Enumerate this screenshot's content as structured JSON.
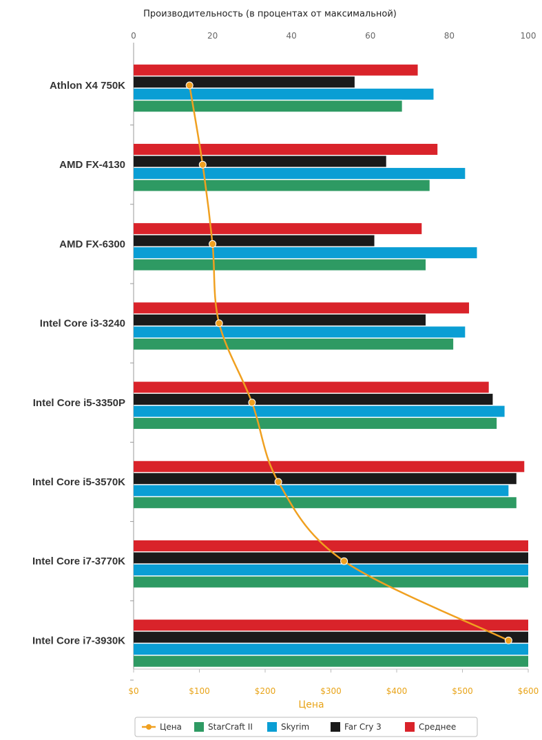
{
  "chart_data": {
    "type": "bar",
    "orientation": "horizontal",
    "top_axis_title": "Производительность (в процентах от максимальной)",
    "bottom_axis_title": "Цена",
    "top_ticks": [
      "0",
      "20",
      "40",
      "60",
      "80",
      "100"
    ],
    "top_range": [
      0,
      100
    ],
    "bottom_ticks": [
      "$0",
      "$100",
      "$200",
      "$300",
      "$400",
      "$500",
      "$600"
    ],
    "bottom_range": [
      0,
      600
    ],
    "categories": [
      "Athlon X4 750K",
      "AMD FX-4130",
      "AMD FX-6300",
      "Intel Core i3-3240",
      "Intel Core i5-3350P",
      "Intel Core i5-3570K",
      "Intel Core i7-3770K",
      "Intel Core i7-3930K"
    ],
    "series": [
      {
        "name": "Среднее",
        "color": "#d9232a",
        "values": [
          72,
          77,
          73,
          85,
          90,
          99,
          100,
          100
        ]
      },
      {
        "name": "Far Cry 3",
        "color": "#1a1a1a",
        "values": [
          56,
          64,
          61,
          74,
          91,
          97,
          100,
          100
        ]
      },
      {
        "name": "Skyrim",
        "color": "#0a9ed4",
        "values": [
          76,
          84,
          87,
          84,
          94,
          95,
          100,
          100
        ]
      },
      {
        "name": "StarCraft II",
        "color": "#2e9a63",
        "values": [
          68,
          75,
          74,
          81,
          92,
          97,
          100,
          100
        ]
      }
    ],
    "line_series": {
      "name": "Цена",
      "color": "#f0a020",
      "values": [
        85,
        105,
        120,
        130,
        180,
        220,
        320,
        570
      ]
    },
    "legend": {
      "position": "bottom",
      "items": [
        {
          "label": "Цена",
          "color": "#f0a020",
          "marker": "line-dot"
        },
        {
          "label": "StarCraft II",
          "color": "#2e9a63",
          "marker": "square"
        },
        {
          "label": "Skyrim",
          "color": "#0a9ed4",
          "marker": "square"
        },
        {
          "label": "Far Cry 3",
          "color": "#1a1a1a",
          "marker": "square"
        },
        {
          "label": "Среднее",
          "color": "#d9232a",
          "marker": "square"
        }
      ]
    },
    "grid": false
  }
}
